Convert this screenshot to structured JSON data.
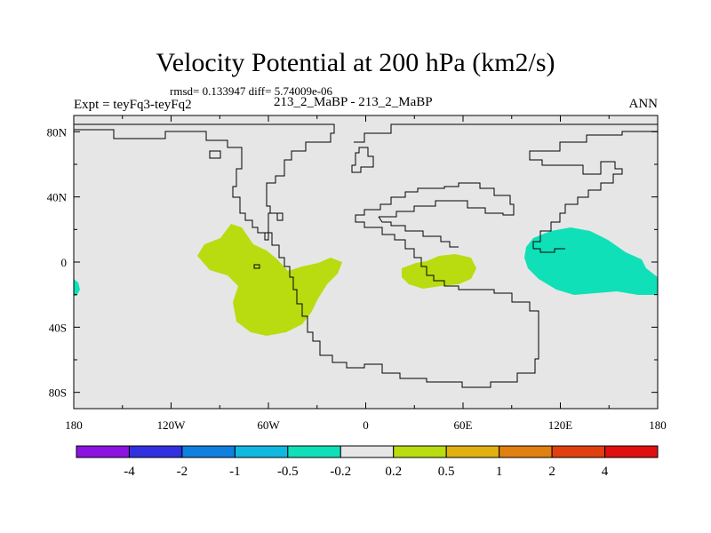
{
  "chart_data": {
    "type": "contour-map",
    "title": "Velocity Potential at 200 hPa (km2/s)",
    "stats_line": "rmsd= 0.133947 diff= 5.74009e-06",
    "left_label": "Expt = teyFq3-teyFq2",
    "center_label": "213_2_MaBP - 213_2_MaBP",
    "right_label": "ANN",
    "x_axis": {
      "range": [
        -180,
        180
      ],
      "ticks": [
        {
          "value": -180,
          "label": "180"
        },
        {
          "value": -120,
          "label": "120W"
        },
        {
          "value": -60,
          "label": "60W"
        },
        {
          "value": 0,
          "label": "0"
        },
        {
          "value": 60,
          "label": "60E"
        },
        {
          "value": 120,
          "label": "120E"
        },
        {
          "value": 180,
          "label": "180"
        }
      ]
    },
    "y_axis": {
      "range": [
        -90,
        90
      ],
      "ticks": [
        {
          "value": 80,
          "label": "80N"
        },
        {
          "value": 40,
          "label": "40N"
        },
        {
          "value": 0,
          "label": "0"
        },
        {
          "value": -40,
          "label": "40S"
        },
        {
          "value": -80,
          "label": "80S"
        }
      ]
    },
    "colorbar": {
      "levels": [
        "-4",
        "-2",
        "-1",
        "-0.5",
        "-0.2",
        "0.2",
        "0.5",
        "1",
        "2",
        "4"
      ],
      "colors": [
        "#8c14e0",
        "#3030e0",
        "#1080e0",
        "#10b8e0",
        "#10e0b8",
        "#e6e6e6",
        "#b8dc10",
        "#e0b010",
        "#e08010",
        "#e04010",
        "#e01010"
      ]
    },
    "regions": [
      {
        "name": "Central Pacific–S. America positive anomaly",
        "bin": "0.2 to 0.5",
        "color": "#b8dc10",
        "lon_range": [
          -103,
          -12
        ],
        "lat_range": [
          -47,
          25
        ]
      },
      {
        "name": "Africa–Indian Ocean positive anomaly",
        "bin": "0.2 to 0.5",
        "color": "#b8dc10",
        "lon_range": [
          22,
          70
        ],
        "lat_range": [
          -17,
          4
        ]
      },
      {
        "name": "W. Pacific negative anomaly",
        "bin": "-0.5 to -0.2",
        "color": "#10e0b8",
        "lon_range": [
          100,
          180
        ],
        "lat_range": [
          -20,
          20
        ]
      },
      {
        "name": "Dateline edge negative anomaly",
        "bin": "-0.5 to -0.2",
        "color": "#10e0b8",
        "lon_range": [
          -180,
          -176
        ],
        "lat_range": [
          -22,
          -10
        ]
      }
    ]
  }
}
